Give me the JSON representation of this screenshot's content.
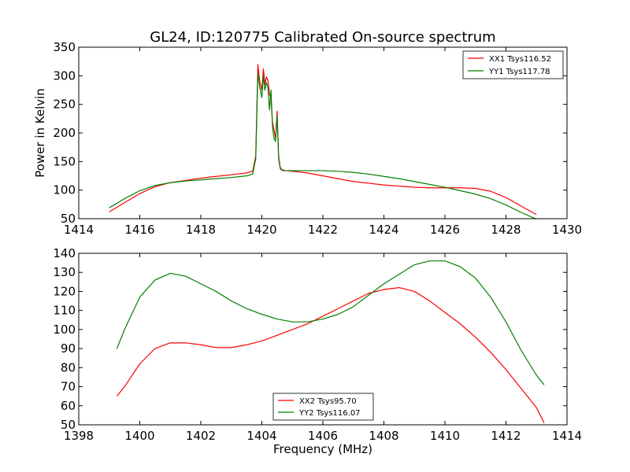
{
  "title": "GL24, ID:120775 Calibrated On-source spectrum",
  "chart_data": [
    {
      "type": "line",
      "title": "GL24, ID:120775 Calibrated On-source spectrum",
      "xlabel": "",
      "ylabel": "Power in Kelvin",
      "xlim": [
        1414,
        1430
      ],
      "ylim": [
        50,
        350
      ],
      "xticks": [
        "1414",
        "1416",
        "1418",
        "1420",
        "1422",
        "1424",
        "1426",
        "1428",
        "1430"
      ],
      "yticks": [
        "50",
        "100",
        "150",
        "200",
        "250",
        "300",
        "350"
      ],
      "grid": false,
      "legend": "top-right",
      "series": [
        {
          "name": "XX1 Tsys116.52",
          "color": "#ff0000",
          "x": [
            1415.0,
            1415.5,
            1416.0,
            1416.5,
            1417.0,
            1417.5,
            1418.0,
            1418.5,
            1419.0,
            1419.5,
            1419.7,
            1419.8,
            1419.87,
            1419.93,
            1420.0,
            1420.05,
            1420.1,
            1420.15,
            1420.2,
            1420.25,
            1420.3,
            1420.35,
            1420.4,
            1420.45,
            1420.5,
            1420.55,
            1420.6,
            1420.65,
            1420.7,
            1420.8,
            1421.0,
            1421.5,
            1422.0,
            1422.5,
            1423.0,
            1423.5,
            1424.0,
            1424.5,
            1425.0,
            1425.5,
            1426.0,
            1426.5,
            1427.0,
            1427.5,
            1428.0,
            1428.5,
            1429.0
          ],
          "values": [
            62,
            78,
            94,
            106,
            113,
            117,
            121,
            124,
            127,
            130,
            133,
            160,
            320,
            290,
            275,
            312,
            285,
            298,
            292,
            268,
            260,
            218,
            205,
            190,
            238,
            160,
            140,
            136,
            135,
            134,
            133,
            130,
            125,
            120,
            115,
            112,
            109,
            107,
            105,
            104,
            104,
            104,
            103,
            98,
            87,
            72,
            57
          ]
        },
        {
          "name": "YY1 Tsys117.78",
          "color": "#008000",
          "x": [
            1415.0,
            1415.5,
            1416.0,
            1416.5,
            1417.0,
            1417.5,
            1418.0,
            1418.5,
            1419.0,
            1419.5,
            1419.7,
            1419.8,
            1419.87,
            1419.93,
            1420.0,
            1420.05,
            1420.1,
            1420.15,
            1420.2,
            1420.25,
            1420.3,
            1420.35,
            1420.4,
            1420.45,
            1420.5,
            1420.55,
            1420.6,
            1420.65,
            1420.7,
            1420.8,
            1421.0,
            1421.5,
            1422.0,
            1422.5,
            1423.0,
            1423.5,
            1424.0,
            1424.5,
            1425.0,
            1425.5,
            1426.0,
            1426.5,
            1427.0,
            1427.5,
            1428.0,
            1428.5,
            1429.0
          ],
          "values": [
            69,
            85,
            99,
            108,
            113,
            116,
            118,
            120,
            122,
            125,
            128,
            155,
            305,
            280,
            262,
            300,
            275,
            288,
            280,
            240,
            275,
            210,
            190,
            185,
            230,
            155,
            138,
            135,
            134,
            134,
            134,
            134,
            134,
            133,
            131,
            128,
            124,
            120,
            115,
            110,
            105,
            99,
            93,
            85,
            74,
            61,
            49
          ]
        }
      ]
    },
    {
      "type": "line",
      "title": "",
      "xlabel": "Frequency (MHz)",
      "ylabel": "",
      "xlim": [
        1398,
        1414
      ],
      "ylim": [
        50,
        140
      ],
      "xticks": [
        "1398",
        "1400",
        "1402",
        "1404",
        "1406",
        "1408",
        "1410",
        "1412",
        "1414"
      ],
      "yticks": [
        "50",
        "60",
        "70",
        "80",
        "90",
        "100",
        "110",
        "120",
        "130",
        "140"
      ],
      "grid": false,
      "legend": "bottom-center",
      "series": [
        {
          "name": "XX2 Tsys95.70",
          "color": "#ff0000",
          "x": [
            1399.25,
            1399.5,
            1400.0,
            1400.5,
            1401.0,
            1401.5,
            1402.0,
            1402.5,
            1403.0,
            1403.5,
            1404.0,
            1404.5,
            1405.0,
            1405.5,
            1406.0,
            1406.5,
            1407.0,
            1407.5,
            1408.0,
            1408.5,
            1409.0,
            1409.5,
            1410.0,
            1410.5,
            1411.0,
            1411.5,
            1412.0,
            1412.5,
            1413.0,
            1413.25
          ],
          "values": [
            65,
            70,
            82,
            90,
            93,
            93,
            92,
            90.5,
            90.5,
            92,
            94,
            97,
            100,
            103,
            107,
            111,
            115,
            119,
            121,
            122,
            120,
            115,
            109,
            103,
            96,
            88,
            79,
            69,
            59,
            51
          ]
        },
        {
          "name": "YY2 Tsys116.07",
          "color": "#008000",
          "x": [
            1399.25,
            1399.5,
            1400.0,
            1400.5,
            1401.0,
            1401.5,
            1402.0,
            1402.5,
            1403.0,
            1403.5,
            1404.0,
            1404.5,
            1405.0,
            1405.5,
            1406.0,
            1406.5,
            1407.0,
            1407.5,
            1408.0,
            1408.5,
            1409.0,
            1409.5,
            1410.0,
            1410.5,
            1411.0,
            1411.5,
            1412.0,
            1412.5,
            1413.0,
            1413.25
          ],
          "values": [
            90,
            100,
            117,
            126,
            129.5,
            128,
            124,
            120,
            115,
            111,
            108,
            105.5,
            104,
            104,
            105.5,
            108,
            112,
            118,
            124,
            129,
            134,
            136,
            136,
            133,
            127,
            117,
            104,
            89,
            76,
            71
          ]
        }
      ]
    }
  ]
}
